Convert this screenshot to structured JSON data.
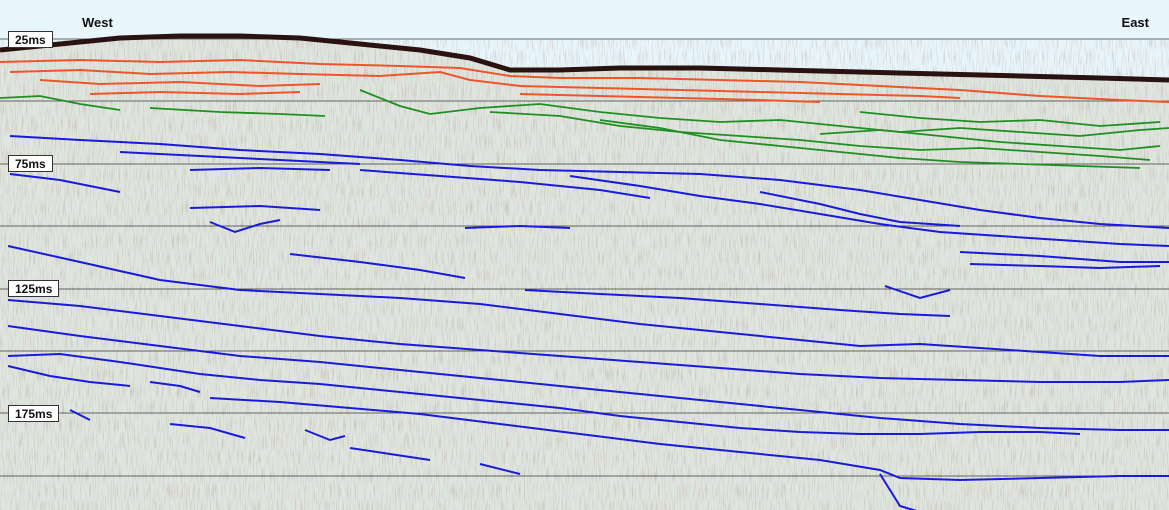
{
  "direction_labels": {
    "west": "West",
    "east": "East"
  },
  "time_labels": [
    "25ms",
    "75ms",
    "125ms",
    "175ms"
  ],
  "colors": {
    "seafloor": "#2a1210",
    "upper_horizons": "#f0552a",
    "middle_horizons": "#1f8f22",
    "deep_horizons": "#1a1adb",
    "gridline": "#3a3a3a",
    "background": "#dfe6df",
    "sky": "#e8f6fb"
  }
}
